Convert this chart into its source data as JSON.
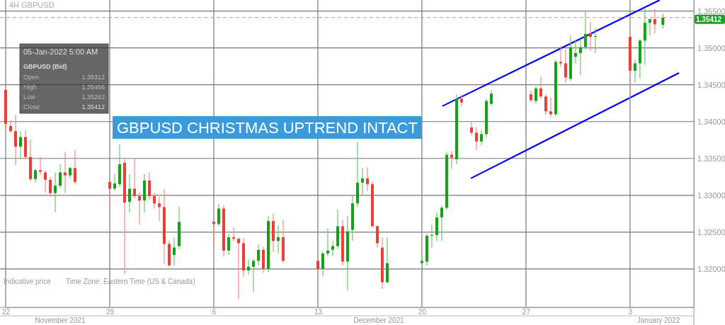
{
  "chart_data": {
    "type": "candlestick",
    "title": "GBPUSD CHRISTMAS UPTREND INTACT",
    "subtitle": "4H GBPUSD",
    "x": [
      "2021-11-22T00:00",
      "2021-11-22T08:00",
      "2021-11-22T16:00",
      "2021-11-23T00:00",
      "2021-11-23T08:00",
      "2021-11-23T16:00",
      "2021-11-24T00:00",
      "2021-11-24T08:00",
      "2021-11-24T16:00",
      "2021-11-25T00:00",
      "2021-11-25T08:00",
      "2021-11-25T16:00",
      "2021-11-26T00:00",
      "2021-11-26T08:00",
      "2021-11-26T16:00",
      "2021-11-29T00:00",
      "2021-11-29T08:00",
      "2021-11-29T16:00",
      "2021-11-30T00:00",
      "2021-11-30T08:00",
      "2021-11-30T16:00",
      "2021-12-01T00:00",
      "2021-12-01T08:00",
      "2021-12-01T16:00",
      "2021-12-02T00:00",
      "2021-12-02T08:00",
      "2021-12-02T16:00",
      "2021-12-03T00:00",
      "2021-12-03T08:00",
      "2021-12-03T16:00",
      "2021-12-06T00:00",
      "2021-12-06T08:00",
      "2021-12-06T16:00",
      "2021-12-07T00:00",
      "2021-12-07T08:00",
      "2021-12-07T16:00",
      "2021-12-08T00:00",
      "2021-12-08T08:00",
      "2021-12-08T16:00",
      "2021-12-09T00:00",
      "2021-12-09T08:00",
      "2021-12-09T16:00",
      "2021-12-10T00:00",
      "2021-12-10T08:00",
      "2021-12-10T16:00",
      "2021-12-13T00:00",
      "2021-12-13T08:00",
      "2021-12-13T16:00",
      "2021-12-14T00:00",
      "2021-12-14T08:00",
      "2021-12-14T16:00",
      "2021-12-15T00:00",
      "2021-12-15T08:00",
      "2021-12-15T16:00",
      "2021-12-16T00:00",
      "2021-12-16T08:00",
      "2021-12-16T16:00",
      "2021-12-17T00:00",
      "2021-12-17T08:00",
      "2021-12-17T16:00",
      "2021-12-20T00:00",
      "2021-12-20T08:00",
      "2021-12-20T16:00",
      "2021-12-21T00:00",
      "2021-12-21T08:00",
      "2021-12-21T16:00",
      "2021-12-22T00:00",
      "2021-12-22T08:00",
      "2021-12-22T16:00",
      "2021-12-23T08:00",
      "2021-12-23T16:00",
      "2021-12-24T00:00",
      "2021-12-24T08:00",
      "2021-12-24T16:00",
      "2021-12-27T08:00",
      "2021-12-27T16:00",
      "2021-12-28T00:00",
      "2021-12-28T08:00",
      "2021-12-28T16:00",
      "2021-12-29T00:00",
      "2021-12-29T08:00",
      "2021-12-29T16:00",
      "2021-12-30T00:00",
      "2021-12-30T08:00",
      "2021-12-30T16:00",
      "2021-12-31T00:00",
      "2021-12-31T08:00",
      "2021-12-31T16:00",
      "2022-01-03T00:00",
      "2022-01-03T08:00",
      "2022-01-03T16:00",
      "2022-01-04T00:00",
      "2022-01-04T08:00",
      "2022-01-04T16:00",
      "2022-01-05T05:00"
    ],
    "ohlc": [
      [
        1.3443,
        1.3445,
        1.3389,
        1.3397
      ],
      [
        1.3394,
        1.3402,
        1.3385,
        1.3387
      ],
      [
        1.3387,
        1.3409,
        1.3341,
        1.3366
      ],
      [
        1.3366,
        1.3387,
        1.3349,
        1.3379
      ],
      [
        1.3379,
        1.3389,
        1.3349,
        1.3352
      ],
      [
        1.3352,
        1.3376,
        1.3319,
        1.3322
      ],
      [
        1.3322,
        1.3336,
        1.3317,
        1.3334
      ],
      [
        1.3334,
        1.3352,
        1.3328,
        1.3332
      ],
      [
        1.3331,
        1.3334,
        1.3304,
        1.3321
      ],
      [
        1.3321,
        1.3325,
        1.3298,
        1.3303
      ],
      [
        1.3303,
        1.3331,
        1.3277,
        1.3313
      ],
      [
        1.3313,
        1.3342,
        1.331,
        1.3331
      ],
      [
        1.3331,
        1.3359,
        1.3303,
        1.3327
      ],
      [
        1.3327,
        1.3339,
        1.3323,
        1.3337
      ],
      [
        1.3337,
        1.3361,
        1.3315,
        1.3318
      ],
      [
        1.3318,
        1.332,
        1.3286,
        1.3309
      ],
      [
        1.3309,
        1.3329,
        1.3306,
        1.3316
      ],
      [
        1.3315,
        1.3369,
        1.3311,
        1.3342
      ],
      [
        1.3344,
        1.3349,
        1.3193,
        1.329
      ],
      [
        1.3291,
        1.3329,
        1.3277,
        1.3309
      ],
      [
        1.3309,
        1.3351,
        1.3296,
        1.3299
      ],
      [
        1.3299,
        1.3304,
        1.326,
        1.3293
      ],
      [
        1.3293,
        1.3329,
        1.3277,
        1.332
      ],
      [
        1.332,
        1.3331,
        1.3294,
        1.3299
      ],
      [
        1.3299,
        1.3304,
        1.3282,
        1.3289
      ],
      [
        1.3289,
        1.3298,
        1.3265,
        1.3284
      ],
      [
        1.3284,
        1.3309,
        1.3207,
        1.3234
      ],
      [
        1.3234,
        1.3238,
        1.3203,
        1.3205
      ],
      [
        1.3219,
        1.3243,
        1.3205,
        1.3229
      ],
      [
        1.3231,
        1.3285,
        1.3227,
        1.3264
      ],
      [
        1.3264,
        1.3269,
        1.3231,
        1.3261
      ],
      [
        1.3261,
        1.3288,
        1.3258,
        1.3282
      ],
      [
        1.3282,
        1.3286,
        1.3217,
        1.3225
      ],
      [
        1.3225,
        1.3248,
        1.3219,
        1.3243
      ],
      [
        1.3243,
        1.3256,
        1.3238,
        1.3241
      ],
      [
        1.3241,
        1.3243,
        1.3159,
        1.3235
      ],
      [
        1.3235,
        1.3242,
        1.319,
        1.3198
      ],
      [
        1.3198,
        1.3213,
        1.3192,
        1.3203
      ],
      [
        1.3203,
        1.3214,
        1.3169,
        1.3211
      ],
      [
        1.3211,
        1.3233,
        1.3205,
        1.3226
      ],
      [
        1.3226,
        1.323,
        1.3195,
        1.32
      ],
      [
        1.32,
        1.3272,
        1.3196,
        1.3265
      ],
      [
        1.3265,
        1.3275,
        1.3223,
        1.3238
      ],
      [
        1.3238,
        1.3259,
        1.3221,
        1.3243
      ],
      [
        1.3243,
        1.3267,
        1.3208,
        1.3211
      ],
      [
        1.3211,
        1.3217,
        1.319,
        1.32
      ],
      [
        1.32,
        1.3224,
        1.319,
        1.3221
      ],
      [
        1.3221,
        1.3255,
        1.3217,
        1.3225
      ],
      [
        1.3226,
        1.3238,
        1.3217,
        1.3231
      ],
      [
        1.3231,
        1.3281,
        1.3227,
        1.3258
      ],
      [
        1.3258,
        1.3267,
        1.3205,
        1.321
      ],
      [
        1.321,
        1.3272,
        1.3171,
        1.3251
      ],
      [
        1.3253,
        1.3301,
        1.3238,
        1.3289
      ],
      [
        1.3289,
        1.3372,
        1.3284,
        1.3317
      ],
      [
        1.3317,
        1.3337,
        1.3301,
        1.3323
      ],
      [
        1.3323,
        1.3338,
        1.3306,
        1.3315
      ],
      [
        1.3315,
        1.3318,
        1.3256,
        1.3258
      ],
      [
        1.3258,
        1.3259,
        1.3229,
        1.3235
      ],
      [
        1.3229,
        1.3243,
        1.3173,
        1.3182
      ],
      [
        1.3182,
        1.3243,
        1.3181,
        1.3208
      ],
      [
        1.3208,
        1.3217,
        1.3196,
        1.3211
      ],
      [
        1.321,
        1.3248,
        1.3205,
        1.3245
      ],
      [
        1.3245,
        1.326,
        1.3229,
        1.3246
      ],
      [
        1.3246,
        1.3277,
        1.3238,
        1.327
      ],
      [
        1.327,
        1.3286,
        1.3238,
        1.3283
      ],
      [
        1.3283,
        1.3359,
        1.328,
        1.3355
      ],
      [
        1.3355,
        1.336,
        1.3336,
        1.3351
      ],
      [
        1.3349,
        1.3437,
        1.3342,
        1.3431
      ],
      [
        1.3431,
        1.3437,
        1.3421,
        1.3426
      ],
      [
        1.3392,
        1.34,
        1.3381,
        1.3385
      ],
      [
        1.3385,
        1.3392,
        1.3361,
        1.3373
      ],
      [
        1.3373,
        1.3389,
        1.3368,
        1.3383
      ],
      [
        1.3383,
        1.3431,
        1.3378,
        1.3428
      ],
      [
        1.3424,
        1.3443,
        1.3421,
        1.3438
      ],
      [
        1.3437,
        1.3442,
        1.3426,
        1.3429
      ],
      [
        1.3428,
        1.3448,
        1.3424,
        1.3445
      ],
      [
        1.3445,
        1.3461,
        1.3431,
        1.3434
      ],
      [
        1.3434,
        1.3437,
        1.3409,
        1.3414
      ],
      [
        1.3414,
        1.3433,
        1.3406,
        1.341
      ],
      [
        1.341,
        1.3484,
        1.3407,
        1.3481
      ],
      [
        1.3481,
        1.3503,
        1.3474,
        1.3479
      ],
      [
        1.3479,
        1.3498,
        1.3453,
        1.346
      ],
      [
        1.3458,
        1.3517,
        1.3455,
        1.3501
      ],
      [
        1.3488,
        1.3511,
        1.3479,
        1.3493
      ],
      [
        1.3493,
        1.3512,
        1.3463,
        1.3501
      ],
      [
        1.3501,
        1.3549,
        1.3498,
        1.3519
      ],
      [
        1.352,
        1.3535,
        1.3496,
        1.3515
      ],
      [
        1.3515,
        1.3527,
        1.3493,
        1.3516
      ],
      [
        1.3515,
        1.3519,
        1.3431,
        1.3469
      ],
      [
        1.3469,
        1.3484,
        1.3453,
        1.3479
      ],
      [
        1.3479,
        1.3512,
        1.3458,
        1.351
      ],
      [
        1.351,
        1.3554,
        1.3477,
        1.3534
      ],
      [
        1.3534,
        1.3539,
        1.3517,
        1.3539
      ],
      [
        1.3539,
        1.3553,
        1.352,
        1.3532
      ],
      [
        1.35312,
        1.35466,
        1.35263,
        1.35412
      ]
    ],
    "series": [
      {
        "type": "line",
        "x": [
          "2021-12-21T09:00",
          "2022-01-05T00:00"
        ],
        "values": [
          1.3421,
          1.3565
        ],
        "color": "#0000ee"
      },
      {
        "type": "line",
        "x": [
          "2021-12-23T07:00",
          "2022-01-06T07:00"
        ],
        "values": [
          1.3323,
          1.3466
        ],
        "color": "#0000ee"
      }
    ],
    "xlim": [
      "2021-11-22T00:00",
      "2022-01-07T07:00"
    ],
    "xticks": [
      {
        "value": "2021-11-22",
        "label": "22"
      },
      {
        "value": "2021-11-29",
        "label": "29"
      },
      {
        "value": "2021-12-06",
        "label": "6"
      },
      {
        "value": "2021-12-13",
        "label": "13"
      },
      {
        "value": "2021-12-20",
        "label": "20"
      },
      {
        "value": "2021-12-27",
        "label": "27"
      },
      {
        "value": "2022-01-03",
        "label": "3"
      }
    ],
    "ylim": [
      1.3148,
      1.3565
    ],
    "yticks": [
      {
        "value": 1.32,
        "label": "1.32000"
      },
      {
        "value": 1.325,
        "label": "1.32500"
      },
      {
        "value": 1.33,
        "label": "1.33000"
      },
      {
        "value": 1.335,
        "label": "1.33500"
      },
      {
        "value": 1.34,
        "label": "1.34000"
      },
      {
        "value": 1.345,
        "label": "1.34500"
      },
      {
        "value": 1.35,
        "label": "1.35000"
      },
      {
        "value": 1.355,
        "label": "1.35500"
      }
    ],
    "ref_lines": [
      {
        "axis": "y",
        "value": 1.35412,
        "label": "1.35412",
        "color": "#f08080",
        "line_style": "dashed"
      }
    ],
    "grid": true,
    "annotations": [
      "05-Jan-2022 5:00 AM",
      "GBPUSD (Bid)",
      "Open",
      "1.35312",
      "High",
      "1.35466",
      "Low",
      "1.35263",
      "Close",
      "1.35412",
      "Indicative price",
      "Time Zone: Eastern Time (US & Canada)",
      "November 2021",
      "December 2021",
      "January 2022"
    ]
  }
}
